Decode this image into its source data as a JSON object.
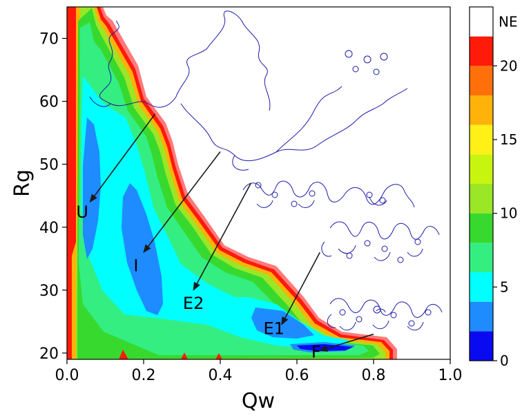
{
  "chart_data": {
    "type": "heatmap",
    "xlabel": "Qw",
    "ylabel": "Rg",
    "xlim": [
      0.0,
      1.0
    ],
    "ylim": [
      19,
      75
    ],
    "x_ticks": [
      "0.0",
      "0.2",
      "0.4",
      "0.6",
      "0.8",
      "1.0"
    ],
    "y_ticks": [
      "20",
      "30",
      "40",
      "50",
      "60",
      "70"
    ],
    "colorbar": {
      "levels": [
        0,
        2,
        4,
        6,
        8,
        10,
        12,
        14,
        16,
        18,
        20,
        22
      ],
      "colors": [
        "#0a0af0",
        "#1e8cff",
        "#00ffff",
        "#34ee82",
        "#37d92e",
        "#9ae627",
        "#c8f50f",
        "#fff018",
        "#ffb20a",
        "#ff6f0a",
        "#ff1a0a",
        "#ff7a7a"
      ],
      "tick_labels": [
        "0",
        "5",
        "10",
        "15",
        "20"
      ],
      "tick_values": [
        0,
        5,
        10,
        15,
        20
      ],
      "top_label": "NE",
      "top_color": "#ffffff"
    },
    "annotations": [
      {
        "label": "U",
        "x": 0.04,
        "y": 41.5,
        "arrow_from": {
          "x": 0.23,
          "y": 58
        },
        "arrow_to": {
          "x": 0.06,
          "y": 44
        }
      },
      {
        "label": "I",
        "x": 0.18,
        "y": 33,
        "arrow_from": {
          "x": 0.4,
          "y": 52
        },
        "arrow_to": {
          "x": 0.2,
          "y": 36
        }
      },
      {
        "label": "E2",
        "x": 0.33,
        "y": 27,
        "arrow_from": {
          "x": 0.48,
          "y": 47
        },
        "arrow_to": {
          "x": 0.33,
          "y": 30
        }
      },
      {
        "label": "E1",
        "x": 0.54,
        "y": 23,
        "arrow_from": {
          "x": 0.66,
          "y": 36
        },
        "arrow_to": {
          "x": 0.56,
          "y": 24.5
        }
      },
      {
        "label": "F",
        "x": 0.65,
        "y": 19.3,
        "arrow_from": {
          "x": 0.8,
          "y": 23
        },
        "arrow_to": {
          "x": 0.66,
          "y": 20.4
        }
      }
    ],
    "structure_snapshots": [
      "unfolded",
      "intermediate",
      "E2",
      "E1",
      "folded"
    ]
  }
}
